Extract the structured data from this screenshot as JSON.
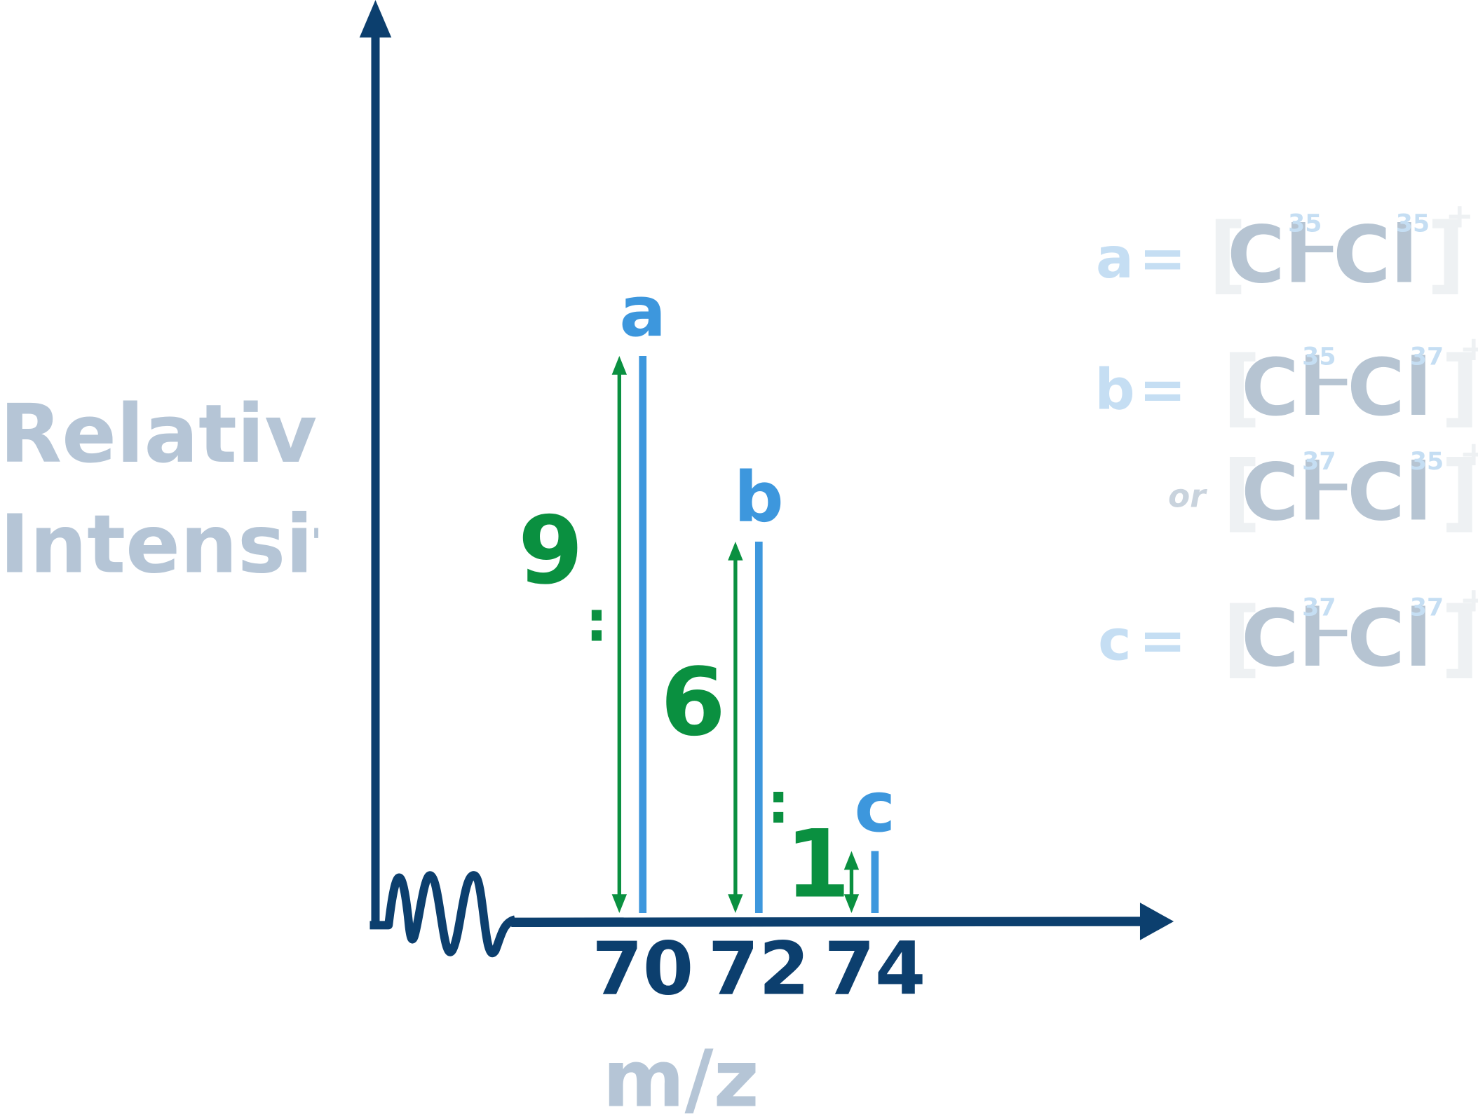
{
  "chart_data": {
    "type": "bar",
    "ylabel": "Relative Intensity",
    "xlabel": "m/z",
    "x": [
      70,
      72,
      74
    ],
    "values": [
      9,
      6,
      1
    ],
    "peak_labels": [
      "a",
      "b",
      "c"
    ],
    "xlim": [
      67.8,
      79.1
    ],
    "xticks": [
      70,
      72,
      74
    ],
    "ylim": [
      0,
      14.6
    ],
    "color": "#3d97dd",
    "ratio_color": "#0a9040",
    "key": {
      "element": "Cl",
      "charge": "+",
      "equals": "=",
      "or": "or",
      "entries": [
        {
          "letter": "a",
          "formulas": [
            [
              "35",
              "35"
            ]
          ]
        },
        {
          "letter": "b",
          "formulas": [
            [
              "35",
              "37"
            ],
            [
              "37",
              "35"
            ]
          ]
        },
        {
          "letter": "c",
          "formulas": [
            [
              "37",
              "37"
            ]
          ]
        }
      ]
    }
  }
}
